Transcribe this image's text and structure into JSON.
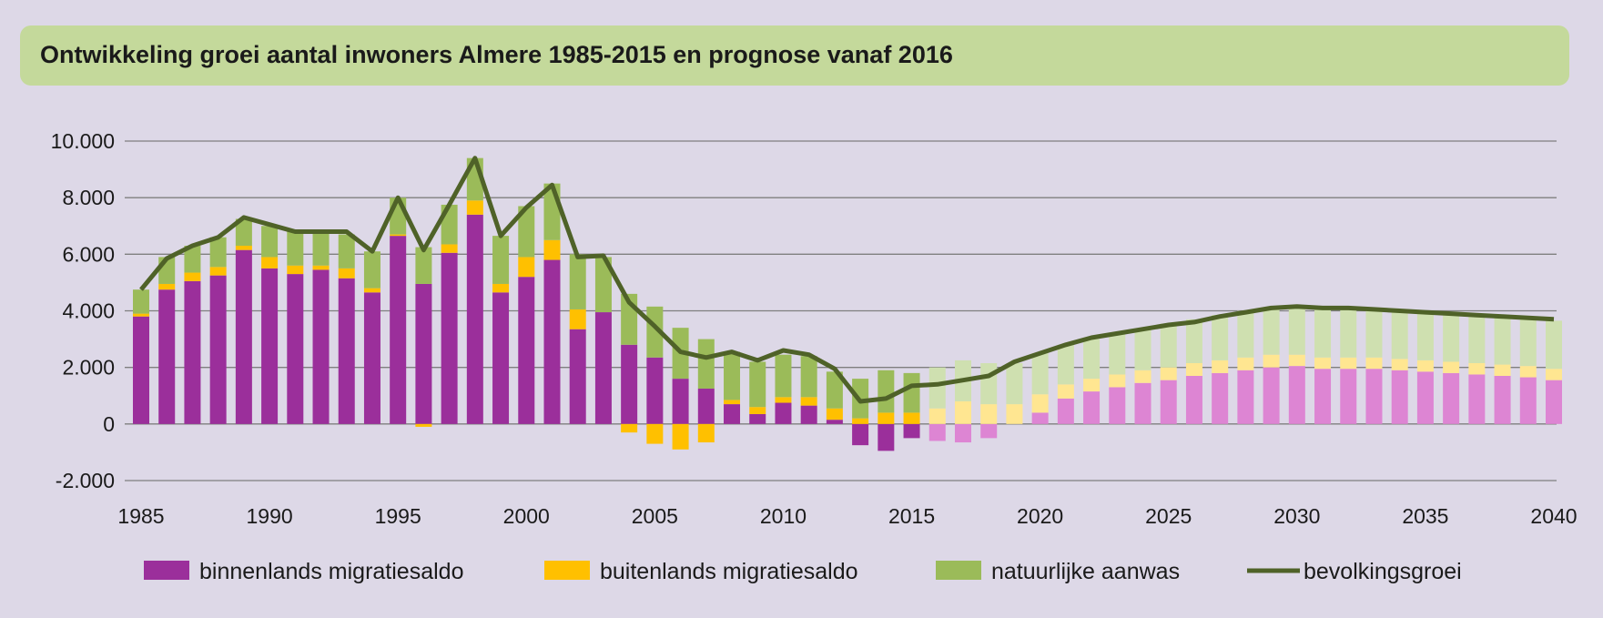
{
  "title": "Ontwikkeling groei aantal inwoners Almere 1985-2015 en prognose vanaf 2016",
  "colors": {
    "binnenlands": "#9b2f9b",
    "buitenlands": "#ffc000",
    "natuurlijk": "#9bbb59",
    "binnenlands_prognose": "#dd85d3",
    "buitenlands_prognose": "#ffe691",
    "natuurlijk_prognose": "#cfe0b0",
    "bevolkingsgroei": "#4f6228",
    "grid": "#7f7f7f",
    "background": "#ddd8e7",
    "title_box": "#c4d99b"
  },
  "chart_data": {
    "type": "bar",
    "stacked": true,
    "prognosis_from": 2016,
    "x": [
      1985,
      1986,
      1987,
      1988,
      1989,
      1990,
      1991,
      1992,
      1993,
      1994,
      1995,
      1996,
      1997,
      1998,
      1999,
      2000,
      2001,
      2002,
      2003,
      2004,
      2005,
      2006,
      2007,
      2008,
      2009,
      2010,
      2011,
      2012,
      2013,
      2014,
      2015,
      2016,
      2017,
      2018,
      2019,
      2020,
      2021,
      2022,
      2023,
      2024,
      2025,
      2026,
      2027,
      2028,
      2029,
      2030,
      2031,
      2032,
      2033,
      2034,
      2035,
      2036,
      2037,
      2038,
      2039,
      2040
    ],
    "x_tick_labels": [
      "1985",
      "1990",
      "1995",
      "2000",
      "2005",
      "2010",
      "2015",
      "2020",
      "2025",
      "2030",
      "2035",
      "2040"
    ],
    "ylim": [
      -2000,
      10000
    ],
    "y_tick_values": [
      -2000,
      0,
      2000,
      4000,
      6000,
      8000,
      10000
    ],
    "y_tick_labels": [
      "-2.000",
      "0",
      "2.000",
      "4.000",
      "6.000",
      "8.000",
      "10.000"
    ],
    "grid": true,
    "legend_position": "bottom",
    "series": [
      {
        "name": "binnenlands migratiesaldo",
        "kind": "bar",
        "values": [
          3800,
          4750,
          5050,
          5250,
          6150,
          5500,
          5300,
          5450,
          5150,
          4650,
          6650,
          4950,
          6050,
          7400,
          4650,
          5200,
          5800,
          3350,
          3950,
          2800,
          2350,
          1600,
          1250,
          700,
          350,
          750,
          650,
          150,
          -750,
          -950,
          -500,
          -600,
          -650,
          -500,
          0,
          400,
          900,
          1150,
          1300,
          1450,
          1550,
          1700,
          1800,
          1900,
          2000,
          2050,
          1950,
          1950,
          1950,
          1900,
          1850,
          1800,
          1750,
          1700,
          1650,
          1550
        ]
      },
      {
        "name": "buitenlands migratiesaldo",
        "kind": "bar",
        "values": [
          100,
          200,
          300,
          300,
          150,
          400,
          300,
          150,
          350,
          150,
          50,
          -100,
          300,
          500,
          300,
          700,
          700,
          700,
          0,
          -300,
          -700,
          -900,
          -650,
          150,
          250,
          200,
          300,
          400,
          200,
          400,
          400,
          550,
          800,
          700,
          700,
          650,
          500,
          450,
          450,
          450,
          450,
          450,
          450,
          450,
          450,
          400,
          400,
          400,
          400,
          400,
          400,
          400,
          400,
          400,
          400,
          400
        ]
      },
      {
        "name": "natuurlijke aanwas",
        "kind": "bar",
        "values": [
          850,
          950,
          950,
          1050,
          950,
          1100,
          1200,
          1150,
          1200,
          1300,
          1300,
          1300,
          1400,
          1500,
          1700,
          1800,
          2000,
          1950,
          1950,
          1800,
          1800,
          1800,
          1750,
          1700,
          1600,
          1500,
          1450,
          1300,
          1400,
          1500,
          1400,
          1450,
          1450,
          1450,
          1450,
          1450,
          1400,
          1400,
          1450,
          1450,
          1550,
          1550,
          1600,
          1650,
          1650,
          1700,
          1700,
          1700,
          1700,
          1700,
          1700,
          1700,
          1700,
          1700,
          1700,
          1700
        ]
      },
      {
        "name": "bevolkingsgroei",
        "kind": "line",
        "values": [
          4750,
          5850,
          6300,
          6600,
          7300,
          7050,
          6800,
          6800,
          6800,
          6100,
          8000,
          6150,
          7750,
          9400,
          6650,
          7650,
          8450,
          5900,
          5950,
          4300,
          3450,
          2550,
          2350,
          2550,
          2250,
          2600,
          2450,
          1950,
          800,
          900,
          1350,
          1400,
          1550,
          1700,
          2200,
          2500,
          2800,
          3050,
          3200,
          3350,
          3500,
          3600,
          3800,
          3950,
          4100,
          4150,
          4100,
          4100,
          4050,
          4000,
          3950,
          3900,
          3850,
          3800,
          3750,
          3700
        ]
      }
    ]
  },
  "legend": [
    {
      "label": "binnenlands migratiesaldo",
      "type": "box",
      "color_key": "binnenlands"
    },
    {
      "label": "buitenlands migratiesaldo",
      "type": "box",
      "color_key": "buitenlands"
    },
    {
      "label": "natuurlijke aanwas",
      "type": "box",
      "color_key": "natuurlijk"
    },
    {
      "label": "bevolkingsgroei",
      "type": "line",
      "color_key": "bevolkingsgroei"
    }
  ]
}
